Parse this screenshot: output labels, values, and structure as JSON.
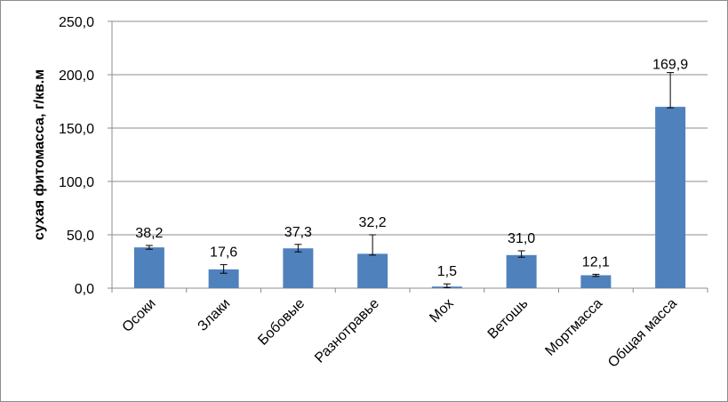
{
  "chart_data": {
    "type": "bar",
    "title": "",
    "xlabel": "",
    "ylabel": "сухая фитомасса, г/кв.м",
    "ylim": [
      0,
      250
    ],
    "yticks": [
      0,
      50,
      100,
      150,
      200,
      250
    ],
    "ytick_labels": [
      "0,0",
      "50,0",
      "100,0",
      "150,0",
      "200,0",
      "250,0"
    ],
    "categories": [
      "Осоки",
      "Злаки",
      "Бобовые",
      "Разнотравье",
      "Мох",
      "Ветошь",
      "Мортмасса",
      "Общая масса"
    ],
    "values": [
      38.2,
      17.6,
      37.3,
      32.2,
      1.5,
      31.0,
      12.1,
      169.9
    ],
    "value_labels": [
      "38,2",
      "17,6",
      "37,3",
      "32,2",
      "1,5",
      "31,0",
      "12,1",
      "169,9"
    ],
    "error_upper": [
      40.0,
      22.0,
      41.0,
      50.0,
      4.0,
      35.0,
      13.0,
      202.0
    ],
    "error_lower": [
      36.5,
      14.0,
      34.0,
      31.0,
      0.5,
      29.0,
      11.0,
      169.0
    ],
    "grid": true,
    "legend": "none",
    "bar_color": "#4f81bd",
    "grid_color": "#8c8c8c"
  }
}
